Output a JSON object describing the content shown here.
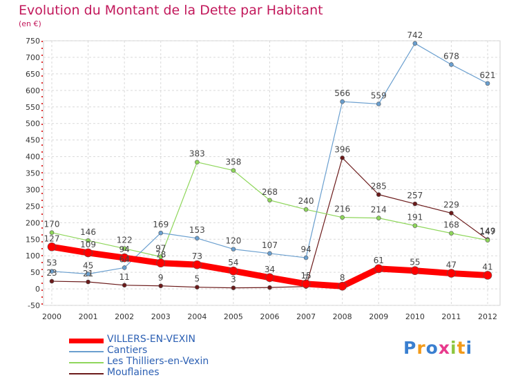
{
  "title": "Evolution du Montant de la Dette par Habitant",
  "unit_label": "(en €)",
  "logo_text": "Proxiti",
  "chart_data": {
    "type": "line",
    "title": "Evolution du Montant de la Dette par Habitant",
    "ylabel": "(en €)",
    "xlabel": "",
    "x": [
      2000,
      2001,
      2002,
      2003,
      2004,
      2005,
      2006,
      2007,
      2008,
      2009,
      2010,
      2011,
      2012
    ],
    "x_tick_labels": [
      "2000",
      "2001",
      "2002",
      "2003",
      "2004",
      "2005",
      "2006",
      "2007",
      "2008",
      "2009",
      "2010",
      "2011",
      "2012"
    ],
    "ylim": [
      -50,
      750
    ],
    "y_ticks": [
      -50,
      0,
      50,
      100,
      150,
      200,
      250,
      300,
      350,
      400,
      450,
      500,
      550,
      600,
      650,
      700,
      750
    ],
    "y_tick_labels": [
      "-50",
      "0",
      "50",
      "100",
      "150",
      "200",
      "250",
      "300",
      "350",
      "400",
      "450",
      "500",
      "550",
      "600",
      "650",
      "700",
      "750"
    ],
    "grid": true,
    "legend_position": "bottom-left",
    "series": [
      {
        "name": "Mouflaines",
        "color": "#6b1a1a",
        "values": [
          23,
          21,
          11,
          9,
          5,
          3,
          4,
          7,
          396,
          285,
          257,
          229,
          149
        ],
        "labels": [
          "23",
          "21",
          "11",
          "9",
          "5",
          "3",
          "",
          "7",
          "396",
          "285",
          "257",
          "229",
          "149"
        ]
      },
      {
        "name": "Les Thilliers-en-Vexin",
        "color": "#8ed65a",
        "values": [
          170,
          146,
          122,
          97,
          383,
          358,
          268,
          240,
          216,
          214,
          191,
          168,
          147
        ],
        "labels": [
          "170",
          "146",
          "122",
          "97",
          "383",
          "358",
          "268",
          "240",
          "216",
          "214",
          "191",
          "168",
          "147"
        ]
      },
      {
        "name": "Cantiers",
        "color": "#6a9fcf",
        "values": [
          53,
          45,
          64,
          169,
          153,
          120,
          107,
          94,
          566,
          559,
          742,
          678,
          621
        ],
        "labels": [
          "53",
          "45",
          "64",
          "169",
          "153",
          "120",
          "107",
          "94",
          "566",
          "559",
          "742",
          "678",
          "621"
        ]
      },
      {
        "name": "VILLERS-EN-VEXIN",
        "color": "#ff0000",
        "values": [
          127,
          109,
          94,
          78,
          73,
          54,
          34,
          15,
          8,
          61,
          55,
          47,
          41
        ],
        "labels": [
          "127",
          "109",
          "94",
          "78",
          "73",
          "54",
          "34",
          "15",
          "8",
          "61",
          "55",
          "47",
          "41"
        ]
      }
    ],
    "legend": [
      "VILLERS-EN-VEXIN",
      "Cantiers",
      "Les Thilliers-en-Vexin",
      "Mouflaines"
    ]
  }
}
